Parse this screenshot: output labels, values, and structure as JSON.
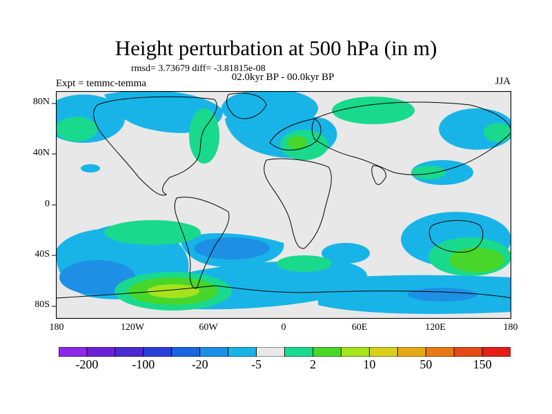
{
  "title": "Height perturbation at 500 hPa (in m)",
  "stats": "rmsd= 3.73679 diff= -3.81815e-08",
  "expt": "Expt = temmc-temma",
  "period": "02.0kyr BP - 00.0kyr BP",
  "season": "JJA",
  "lat_labels": [
    "80N",
    "40N",
    "0",
    "40S",
    "80S"
  ],
  "lon_labels": [
    "180",
    "120W",
    "60W",
    "0",
    "60E",
    "120E",
    "180"
  ],
  "colorbar": {
    "colors": [
      "#8c28e6",
      "#6c20d6",
      "#4a2ad0",
      "#2b3fd8",
      "#1c63e0",
      "#1d8fe4",
      "#18b4e8",
      "#e8e8e8",
      "#19d98c",
      "#48d62a",
      "#a6e31e",
      "#d8d01a",
      "#e6a916",
      "#e67a14",
      "#e44a12",
      "#e21e16"
    ],
    "labels": [
      {
        "text": "-200",
        "index": 1
      },
      {
        "text": "-100",
        "index": 3
      },
      {
        "text": "-20",
        "index": 5
      },
      {
        "text": "-5",
        "index": 7
      },
      {
        "text": "2",
        "index": 9
      },
      {
        "text": "10",
        "index": 11
      },
      {
        "text": "50",
        "index": 13
      },
      {
        "text": "150",
        "index": 15
      }
    ]
  }
}
